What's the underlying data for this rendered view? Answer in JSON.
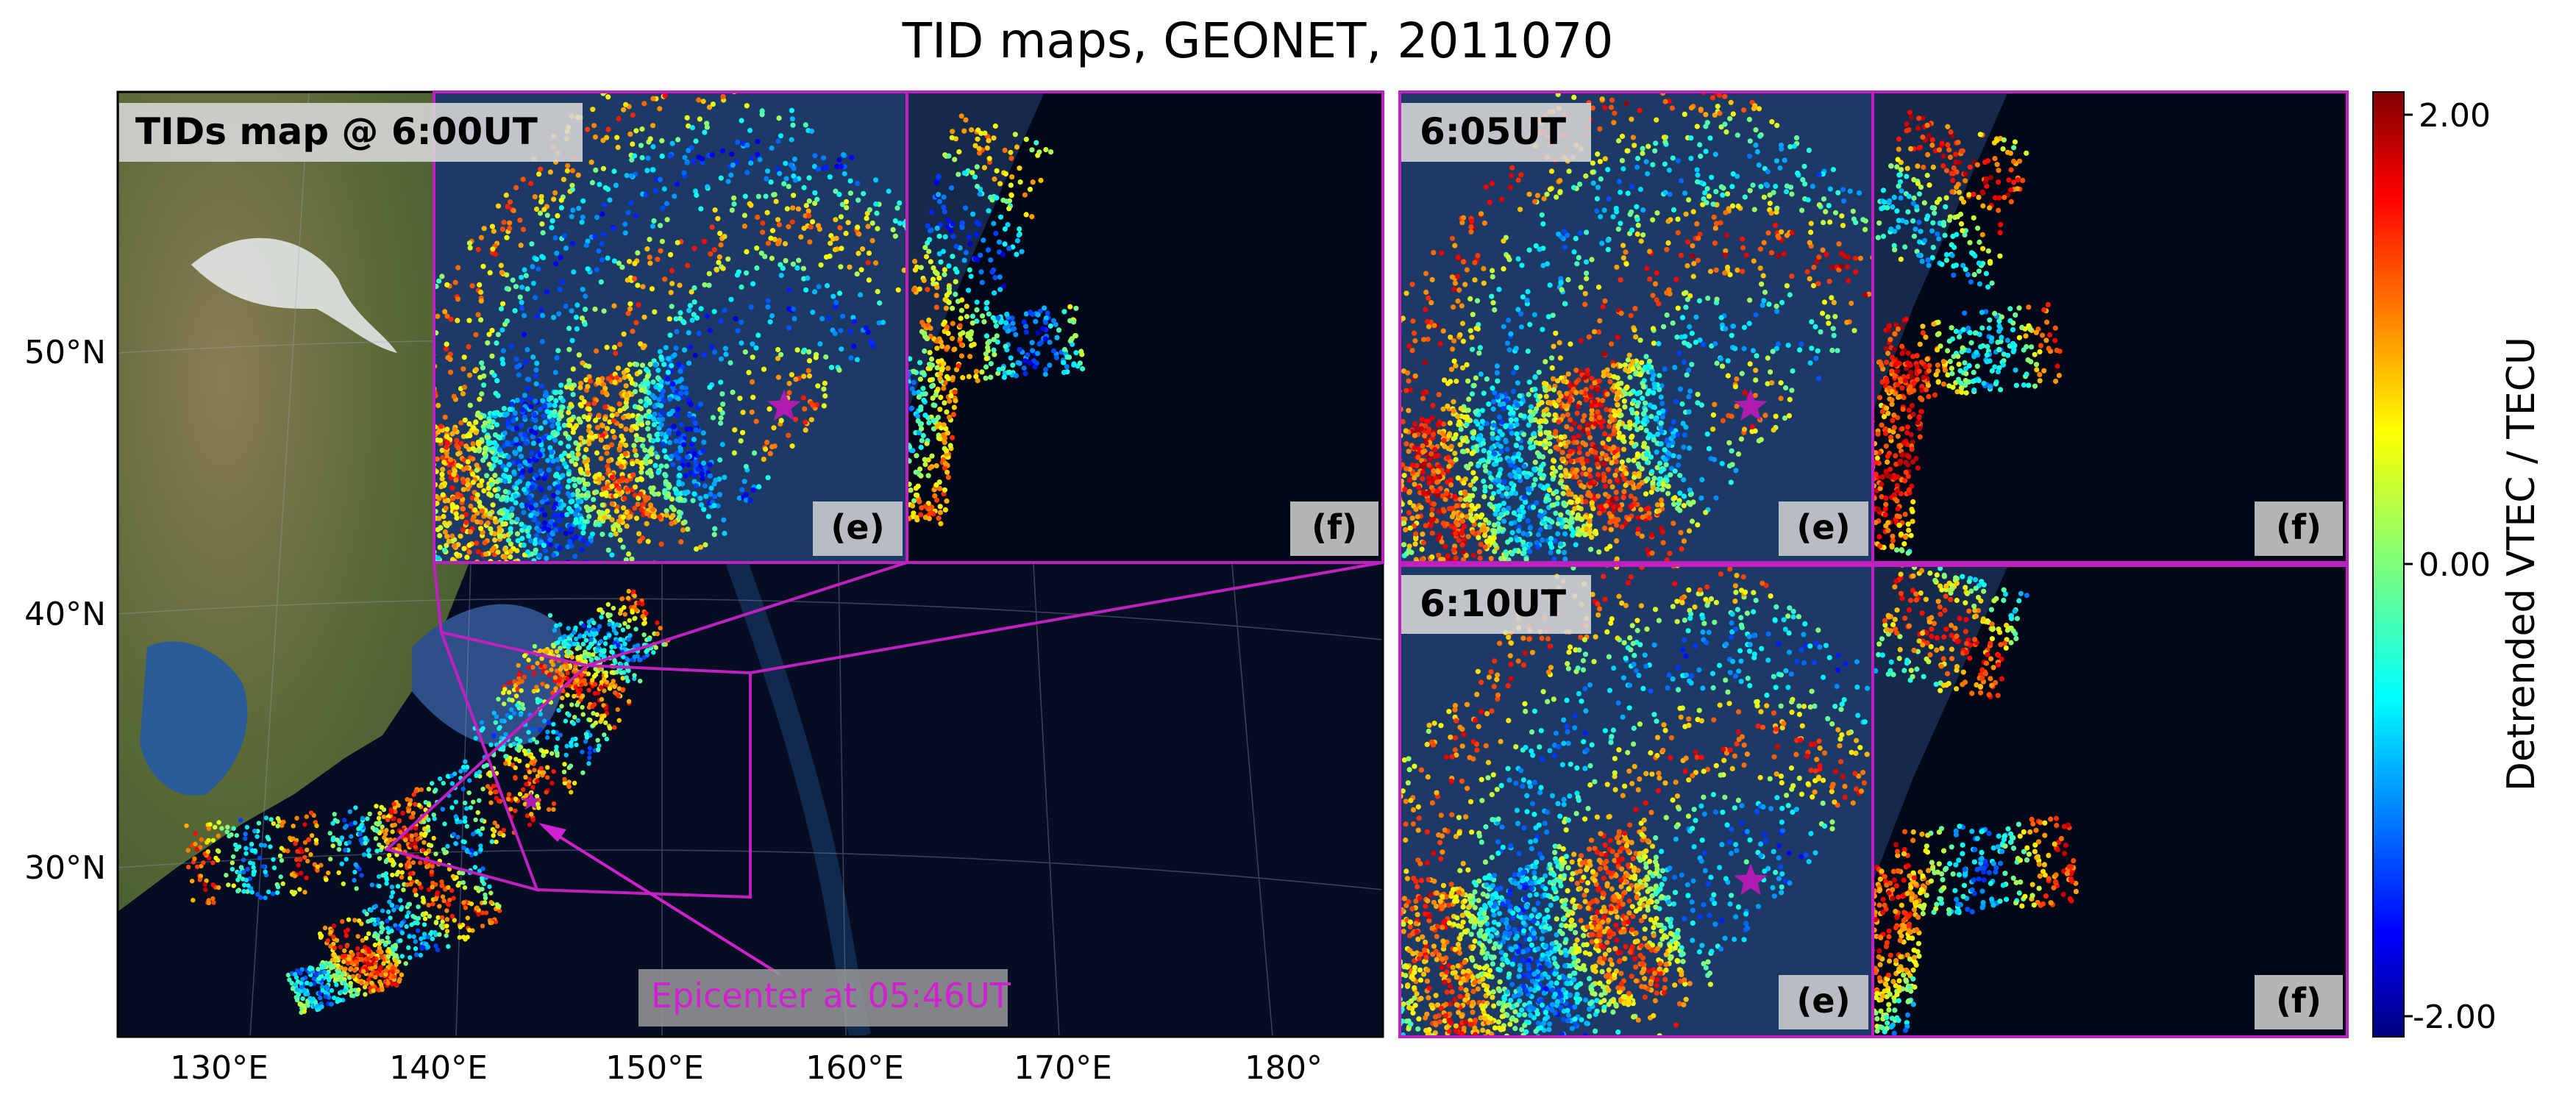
{
  "figure": {
    "title": "TID maps, GEONET, 2011070"
  },
  "main_map": {
    "label": "TIDs map @ 6:00UT",
    "lon_ticks": [
      "130°E",
      "140°E",
      "150°E",
      "160°E",
      "170°E",
      "180°"
    ],
    "lat_ticks": [
      "50°N",
      "40°N",
      "30°N"
    ],
    "epicenter_label": "Epicenter at 05:46UT",
    "inset_e_label": "(e)",
    "inset_f_label": "(f)"
  },
  "panel_605": {
    "label": "6:05UT",
    "e_label": "(e)",
    "f_label": "(f)"
  },
  "panel_610": {
    "label": "6:10UT",
    "e_label": "(e)",
    "f_label": "(f)"
  },
  "colorbar": {
    "label": "Detrended VTEC / TECU",
    "ticks": [
      "2.00",
      "0.00",
      "-2.00"
    ],
    "range": [
      -2.0,
      2.0
    ],
    "colormap": "jet"
  },
  "colors": {
    "frame": "#c020c0",
    "star": "#b01cb0",
    "epicenter_text": "#d020d0",
    "ocean_deep": "#050b1e",
    "ocean_shelf": "#2b4f86",
    "land": "#5f6b3c"
  }
}
